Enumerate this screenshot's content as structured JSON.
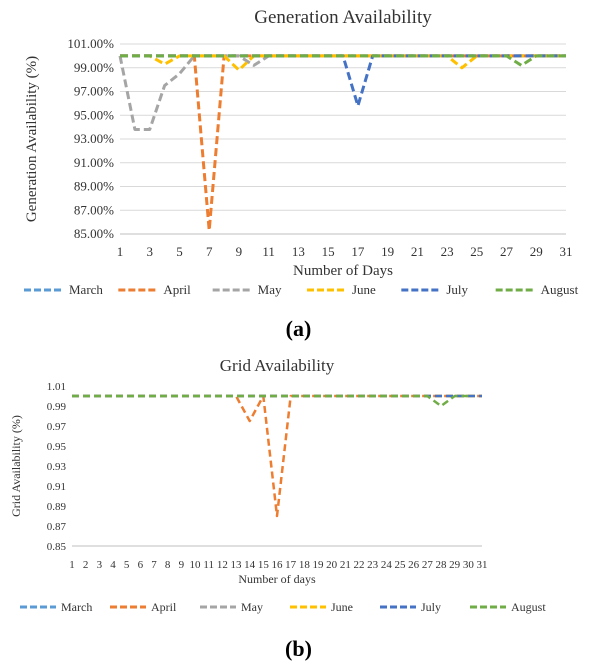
{
  "chart_data": [
    {
      "type": "line",
      "title": "Generation Availability",
      "xlabel": "Number of Days",
      "ylabel": "Generation Availability (%)",
      "x": [
        1,
        2,
        3,
        4,
        5,
        6,
        7,
        8,
        9,
        10,
        11,
        12,
        13,
        14,
        15,
        16,
        17,
        18,
        19,
        20,
        21,
        22,
        23,
        24,
        25,
        26,
        27,
        28,
        29,
        30,
        31
      ],
      "x_tick_labels": [
        "1",
        "3",
        "5",
        "7",
        "9",
        "11",
        "13",
        "15",
        "17",
        "19",
        "21",
        "23",
        "25",
        "27",
        "29",
        "31"
      ],
      "y_tick_labels": [
        "85.00%",
        "87.00%",
        "89.00%",
        "91.00%",
        "93.00%",
        "95.00%",
        "97.00%",
        "99.00%",
        "101.00%"
      ],
      "ylim": [
        85,
        101
      ],
      "grid": "horizontal",
      "legend": "bottom",
      "series": [
        {
          "name": "March",
          "color": "#5b9bd5",
          "values": [
            100,
            100,
            100,
            100,
            100,
            100,
            100,
            100,
            100,
            100,
            100,
            100,
            100,
            100,
            100,
            100,
            100,
            100,
            100,
            100,
            100,
            100,
            100,
            100,
            100,
            100,
            100,
            100,
            100,
            100,
            100
          ]
        },
        {
          "name": "April",
          "color": "#ed7d31",
          "values": [
            100,
            100,
            100,
            100,
            100,
            100,
            85.3,
            100,
            100,
            100,
            100,
            100,
            100,
            100,
            100,
            100,
            100,
            100,
            100,
            100,
            100,
            100,
            100,
            100,
            100,
            100,
            100,
            100,
            100,
            100,
            100
          ]
        },
        {
          "name": "May",
          "color": "#a5a5a5",
          "values": [
            100,
            93.8,
            93.8,
            97.5,
            98.5,
            100,
            100,
            100,
            100,
            99.2,
            100,
            100,
            100,
            100,
            100,
            100,
            100,
            100,
            100,
            100,
            100,
            100,
            100,
            100,
            100,
            100,
            100,
            100,
            100,
            100,
            100
          ]
        },
        {
          "name": "June",
          "color": "#ffc000",
          "values": [
            100,
            100,
            100,
            99.3,
            100,
            100,
            100,
            100,
            98.8,
            100,
            100,
            100,
            100,
            100,
            100,
            100,
            100,
            100,
            100,
            100,
            100,
            100,
            100,
            99,
            100,
            100,
            100,
            100,
            100,
            100,
            100
          ]
        },
        {
          "name": "July",
          "color": "#4472c4",
          "values": [
            100,
            100,
            100,
            100,
            100,
            100,
            100,
            100,
            100,
            100,
            100,
            100,
            100,
            100,
            100,
            100,
            95.8,
            100,
            100,
            100,
            100,
            100,
            100,
            100,
            100,
            100,
            100,
            100,
            100,
            100,
            100
          ]
        },
        {
          "name": "August",
          "color": "#70ad47",
          "values": [
            100,
            100,
            100,
            100,
            100,
            100,
            100,
            100,
            100,
            100,
            100,
            100,
            100,
            100,
            100,
            100,
            100,
            100,
            100,
            100,
            100,
            100,
            100,
            100,
            100,
            100,
            100,
            99.2,
            100,
            100,
            100
          ]
        }
      ]
    },
    {
      "type": "line",
      "title": "Grid Availability",
      "xlabel": "Number of days",
      "ylabel": "Grid Availability (%)",
      "x": [
        1,
        2,
        3,
        4,
        5,
        6,
        7,
        8,
        9,
        10,
        11,
        12,
        13,
        14,
        15,
        16,
        17,
        18,
        19,
        20,
        21,
        22,
        23,
        24,
        25,
        26,
        27,
        28,
        29,
        30,
        31
      ],
      "x_tick_labels": [
        "1",
        "2",
        "3",
        "4",
        "5",
        "6",
        "7",
        "8",
        "9",
        "10",
        "11",
        "12",
        "13",
        "14",
        "15",
        "16",
        "17",
        "18",
        "19",
        "20",
        "21",
        "22",
        "23",
        "24",
        "25",
        "26",
        "27",
        "28",
        "29",
        "30",
        "31"
      ],
      "y_tick_labels": [
        "0.85",
        "0.87",
        "0.89",
        "0.91",
        "0.93",
        "0.95",
        "0.97",
        "0.99",
        "1.01"
      ],
      "ylim": [
        0.85,
        1.01
      ],
      "grid": "none",
      "legend": "bottom",
      "series": [
        {
          "name": "March",
          "color": "#5b9bd5",
          "values": [
            1,
            1,
            1,
            1,
            1,
            1,
            1,
            1,
            1,
            1,
            1,
            1,
            1,
            1,
            1,
            1,
            1,
            1,
            1,
            1,
            1,
            1,
            1,
            1,
            1,
            1,
            1,
            1,
            1,
            1,
            1
          ]
        },
        {
          "name": "April",
          "color": "#ed7d31",
          "values": [
            1,
            1,
            1,
            1,
            1,
            1,
            1,
            1,
            1,
            1,
            1,
            1,
            1,
            0.975,
            1,
            0.88,
            1,
            1,
            1,
            1,
            1,
            1,
            1,
            1,
            1,
            1,
            1,
            1,
            1,
            1,
            1
          ]
        },
        {
          "name": "May",
          "color": "#a5a5a5",
          "values": [
            1,
            1,
            1,
            1,
            1,
            1,
            1,
            1,
            1,
            1,
            1,
            1,
            1,
            1,
            1,
            1,
            1,
            1,
            1,
            1,
            1,
            1,
            1,
            1,
            1,
            1,
            1,
            1,
            1,
            1,
            1
          ]
        },
        {
          "name": "June",
          "color": "#ffc000",
          "values": [
            1,
            1,
            1,
            1,
            1,
            1,
            1,
            1,
            1,
            1,
            1,
            1,
            1,
            1,
            1,
            1,
            1,
            1,
            1,
            1,
            1,
            1,
            1,
            1,
            1,
            1,
            1,
            1,
            1,
            1,
            1
          ]
        },
        {
          "name": "July",
          "color": "#4472c4",
          "values": [
            1,
            1,
            1,
            1,
            1,
            1,
            1,
            1,
            1,
            1,
            1,
            1,
            1,
            1,
            1,
            1,
            1,
            1,
            1,
            1,
            1,
            1,
            1,
            1,
            1,
            1,
            1,
            1,
            1,
            1,
            1
          ]
        },
        {
          "name": "August",
          "color": "#70ad47",
          "values": [
            1,
            1,
            1,
            1,
            1,
            1,
            1,
            1,
            1,
            1,
            1,
            1,
            1,
            1,
            1,
            1,
            1,
            1,
            1,
            1,
            1,
            1,
            1,
            1,
            1,
            1,
            1,
            0.99,
            1,
            1,
            null
          ]
        }
      ]
    }
  ],
  "labels": {
    "a": "(a)",
    "b": "(b)"
  }
}
